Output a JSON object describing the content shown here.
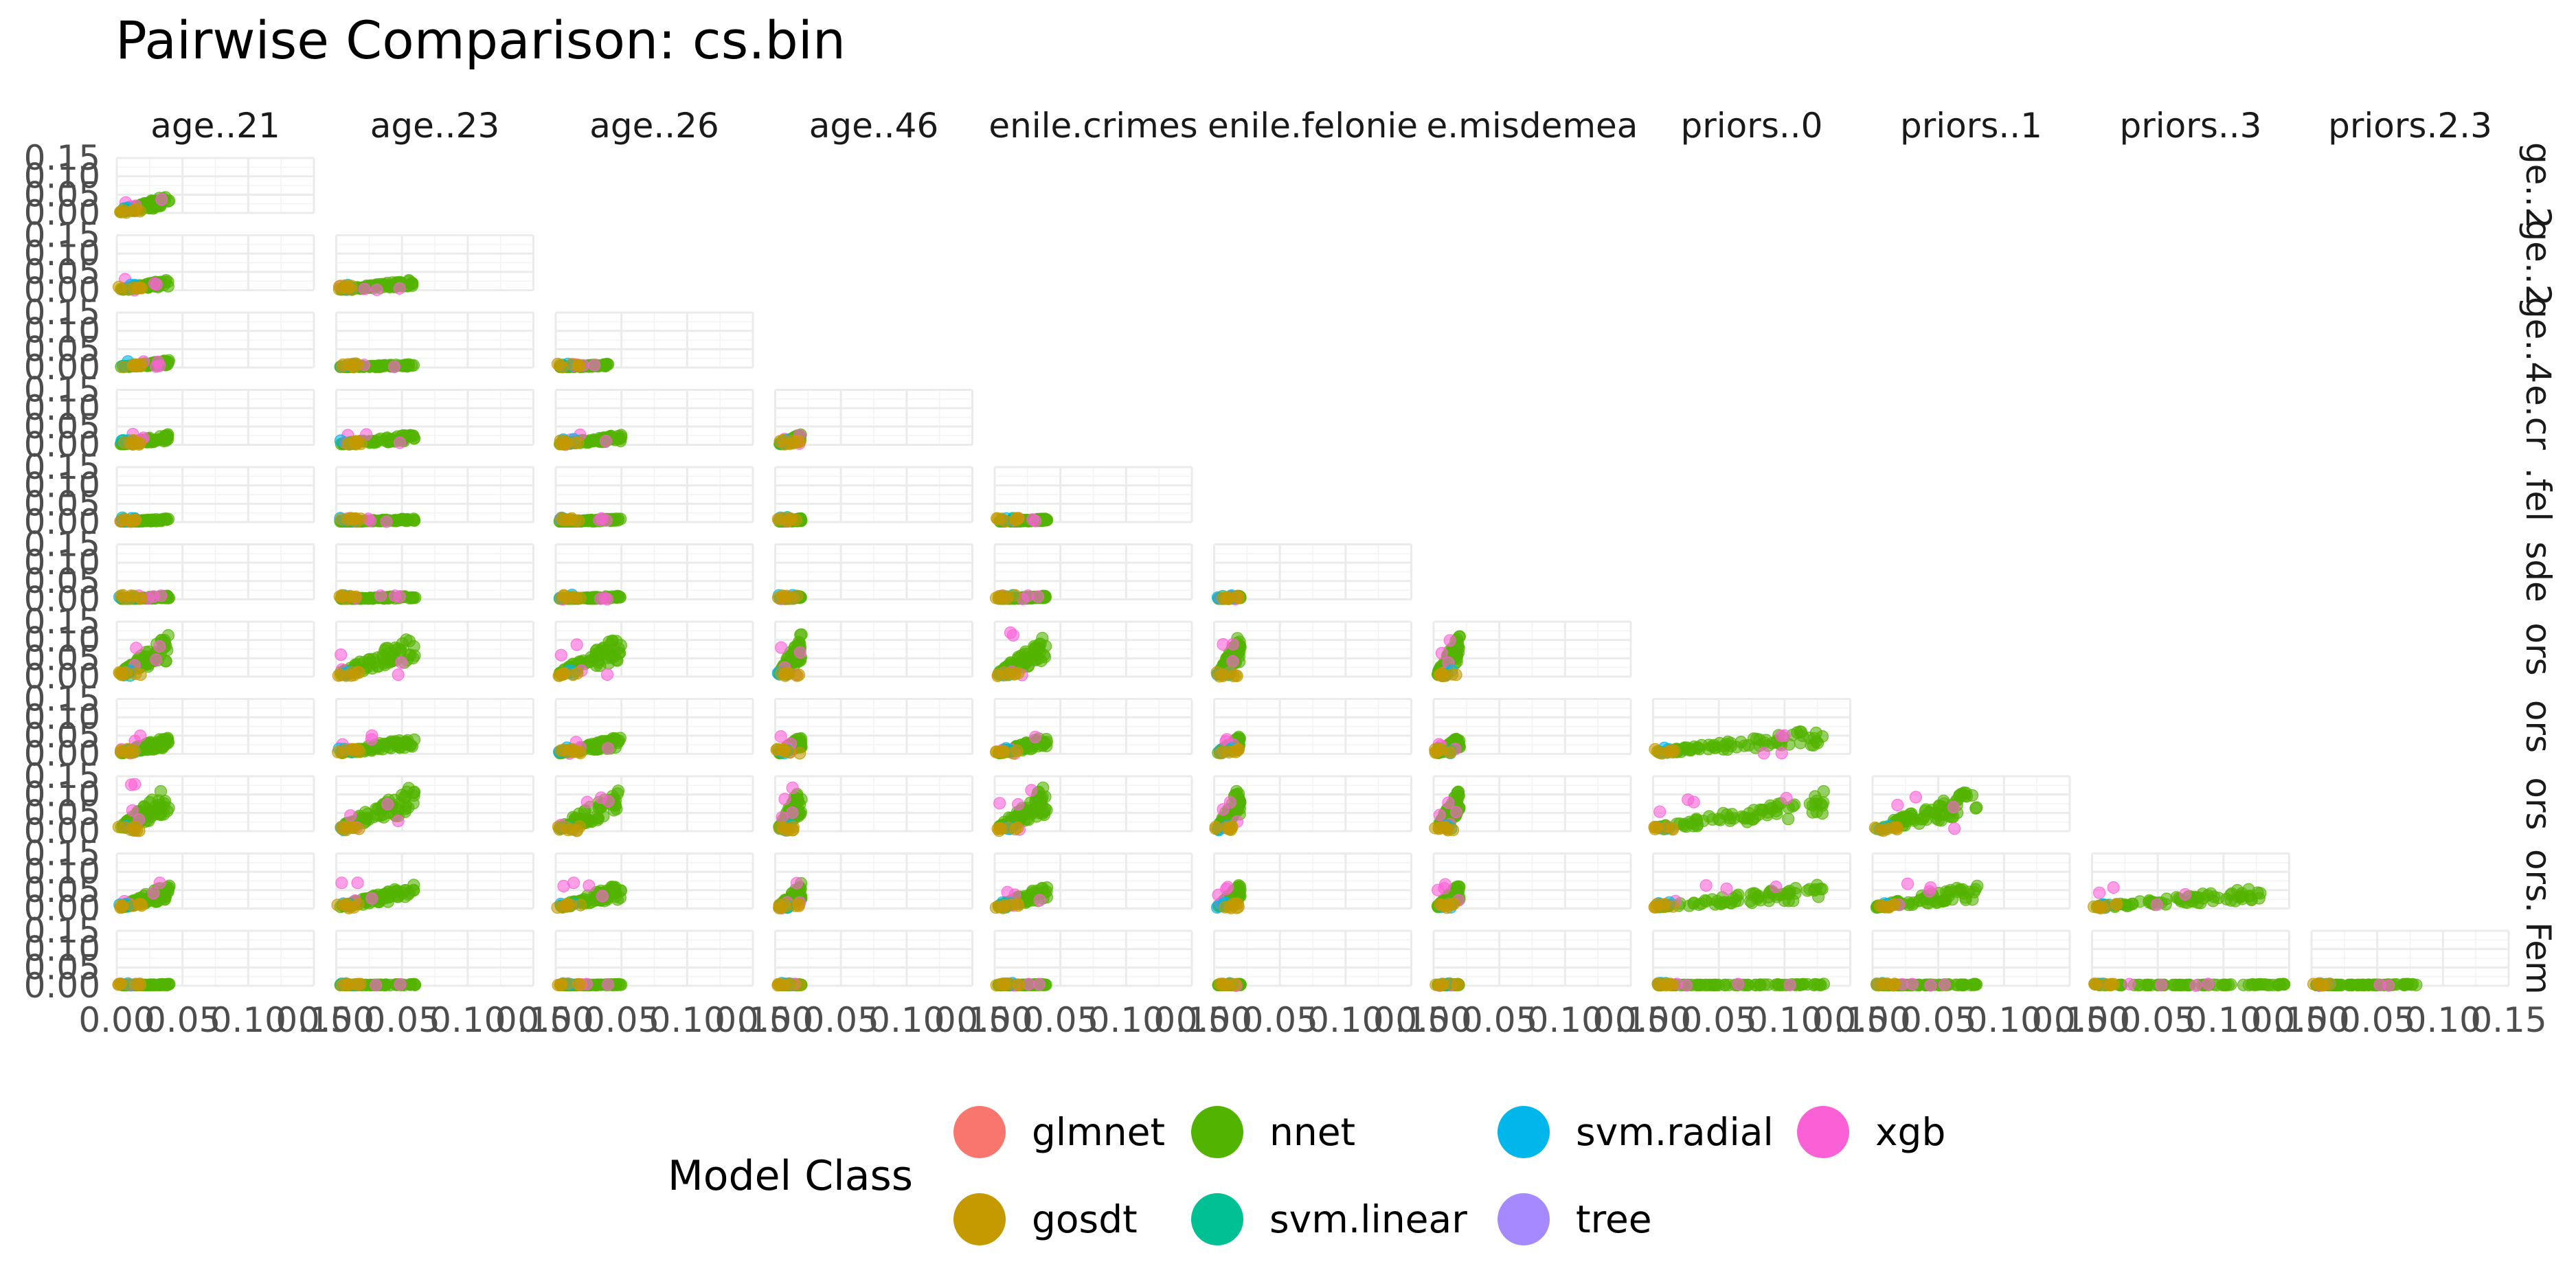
{
  "title": "Pairwise Comparison: cs.bin",
  "chart_data": {
    "type": "scatter",
    "title": "Pairwise Comparison: cs.bin",
    "layout": "lower-triangular facet grid",
    "columns": [
      "age..21",
      "age..23",
      "age..26",
      "age..46",
      "enile.crimes",
      "enile.felonie",
      "e.misdemea",
      "priors..0",
      "priors..1",
      "priors..3",
      "priors.2.3"
    ],
    "rows": [
      "ge..2",
      "ge..2",
      "ge..4",
      "e.cr",
      ".fel",
      "sde",
      "ors",
      "ors",
      "ors",
      "ors.",
      "Fem"
    ],
    "xlim": [
      0,
      0.15
    ],
    "ylim": [
      0,
      0.15
    ],
    "x_ticks": [
      "0.00",
      "0.05",
      "0.10",
      "0.15"
    ],
    "y_ticks": [
      "0.00",
      "0.05",
      "0.10",
      "0.15"
    ],
    "grid": true,
    "point_alpha": 0.6,
    "legend": {
      "title": "Model Class",
      "position": "bottom",
      "items": [
        {
          "name": "glmnet",
          "color": "#F8766D"
        },
        {
          "name": "gosdt",
          "color": "#C49A00"
        },
        {
          "name": "nnet",
          "color": "#53B400"
        },
        {
          "name": "svm.linear",
          "color": "#00C094"
        },
        {
          "name": "svm.radial",
          "color": "#00B6EB"
        },
        {
          "name": "tree",
          "color": "#A58AFF"
        },
        {
          "name": "xgb",
          "color": "#FB61D7"
        }
      ]
    },
    "series_extent": [
      [
        [
          0.04,
          0.05
        ]
      ],
      [
        [
          0.04,
          0.03
        ],
        [
          0.06,
          0.03
        ]
      ],
      [
        [
          0.04,
          0.02
        ],
        [
          0.06,
          0.01
        ],
        [
          0.04,
          0.01
        ]
      ],
      [
        [
          0.04,
          0.03
        ],
        [
          0.06,
          0.03
        ],
        [
          0.05,
          0.03
        ],
        [
          0.02,
          0.03
        ]
      ],
      [
        [
          0.04,
          0.01
        ],
        [
          0.06,
          0.01
        ],
        [
          0.05,
          0.01
        ],
        [
          0.02,
          0.01
        ],
        [
          0.04,
          0.01
        ]
      ],
      [
        [
          0.04,
          0.01
        ],
        [
          0.06,
          0.01
        ],
        [
          0.05,
          0.01
        ],
        [
          0.02,
          0.01
        ],
        [
          0.04,
          0.01
        ],
        [
          0.02,
          0.01
        ]
      ],
      [
        [
          0.04,
          0.12
        ],
        [
          0.06,
          0.12
        ],
        [
          0.05,
          0.12
        ],
        [
          0.02,
          0.12
        ],
        [
          0.04,
          0.12
        ],
        [
          0.02,
          0.12
        ],
        [
          0.02,
          0.12
        ]
      ],
      [
        [
          0.04,
          0.05
        ],
        [
          0.06,
          0.05
        ],
        [
          0.05,
          0.05
        ],
        [
          0.02,
          0.05
        ],
        [
          0.04,
          0.05
        ],
        [
          0.02,
          0.05
        ],
        [
          0.02,
          0.05
        ],
        [
          0.13,
          0.07
        ]
      ],
      [
        [
          0.04,
          0.13
        ],
        [
          0.06,
          0.13
        ],
        [
          0.05,
          0.13
        ],
        [
          0.02,
          0.13
        ],
        [
          0.04,
          0.13
        ],
        [
          0.02,
          0.13
        ],
        [
          0.02,
          0.13
        ],
        [
          0.13,
          0.11
        ],
        [
          0.08,
          0.12
        ]
      ],
      [
        [
          0.04,
          0.07
        ],
        [
          0.06,
          0.07
        ],
        [
          0.05,
          0.07
        ],
        [
          0.02,
          0.07
        ],
        [
          0.04,
          0.07
        ],
        [
          0.02,
          0.07
        ],
        [
          0.02,
          0.07
        ],
        [
          0.13,
          0.07
        ],
        [
          0.08,
          0.07
        ],
        [
          0.13,
          0.06
        ]
      ],
      [
        [
          0.04,
          0.005
        ],
        [
          0.06,
          0.005
        ],
        [
          0.05,
          0.005
        ],
        [
          0.02,
          0.005
        ],
        [
          0.04,
          0.005
        ],
        [
          0.02,
          0.005
        ],
        [
          0.02,
          0.005
        ],
        [
          0.13,
          0.005
        ],
        [
          0.08,
          0.005
        ],
        [
          0.15,
          0.005
        ],
        [
          0.08,
          0.005
        ]
      ]
    ]
  }
}
